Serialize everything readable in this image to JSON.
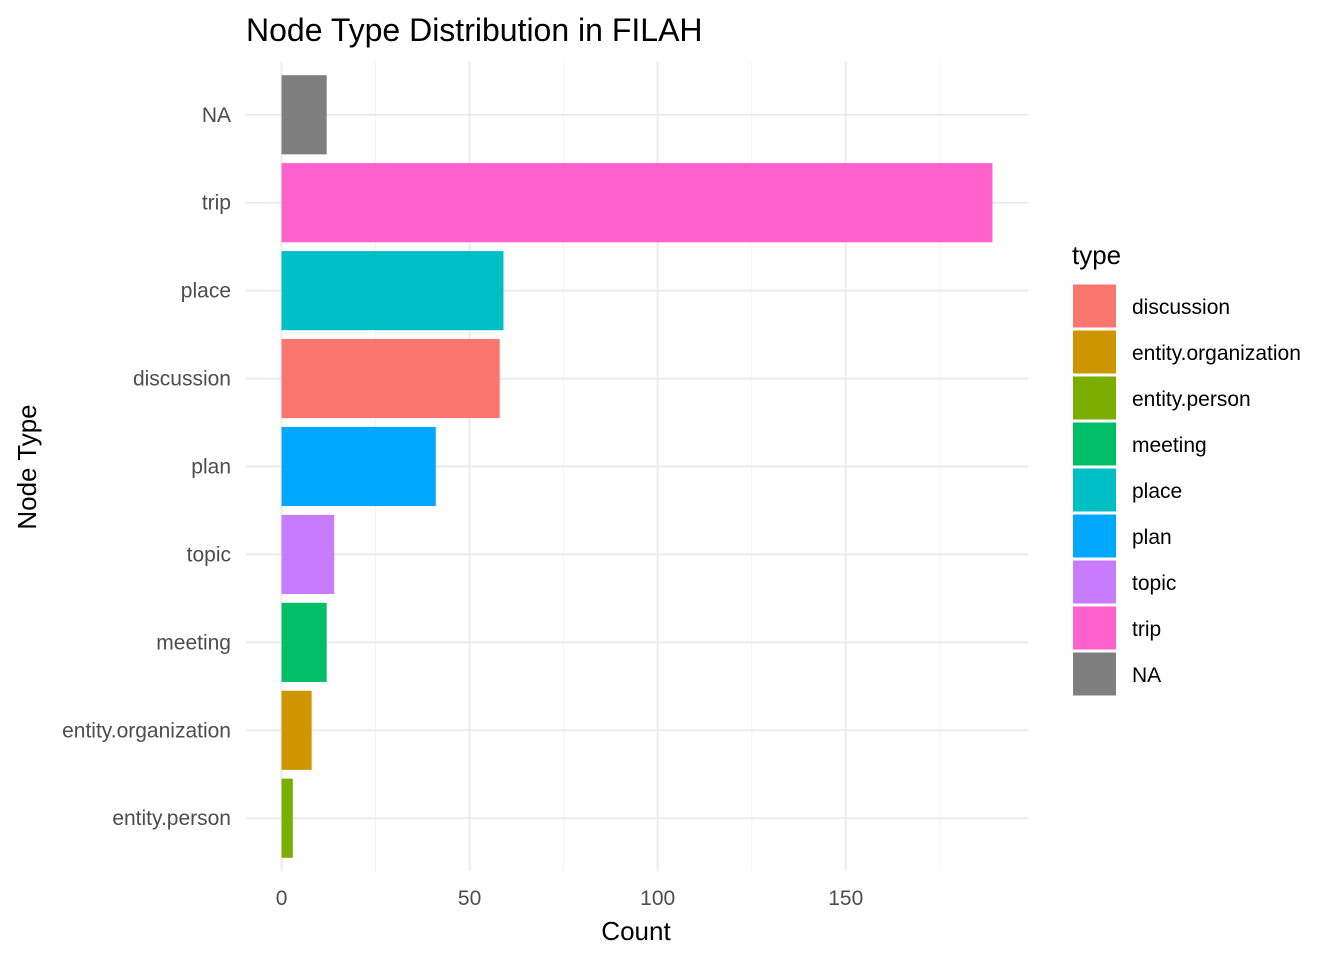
{
  "chart_data": {
    "type": "bar",
    "orientation": "horizontal",
    "title": "Node Type Distribution in FILAH",
    "xlabel": "Count",
    "ylabel": "Node Type",
    "categories": [
      "entity.person",
      "entity.organization",
      "meeting",
      "topic",
      "plan",
      "discussion",
      "place",
      "trip",
      "NA"
    ],
    "values": [
      3,
      8,
      12,
      14,
      41,
      58,
      59,
      189,
      12
    ],
    "colors": [
      "#7CAE00",
      "#CD9600",
      "#00BE67",
      "#C77CFF",
      "#00A9FF",
      "#F8766D",
      "#00BFC4",
      "#FF61CC",
      "#7F7F7F"
    ],
    "xlim": [
      -9.45,
      198.45
    ],
    "xticks": [
      0,
      50,
      100,
      150
    ],
    "xticklabels": [
      "0",
      "50",
      "100",
      "150"
    ],
    "grid": true,
    "legend": {
      "title": "type",
      "position": "right",
      "items": [
        {
          "label": "discussion",
          "color": "#F8766D"
        },
        {
          "label": "entity.organization",
          "color": "#CD9600"
        },
        {
          "label": "entity.person",
          "color": "#7CAE00"
        },
        {
          "label": "meeting",
          "color": "#00BE67"
        },
        {
          "label": "place",
          "color": "#00BFC4"
        },
        {
          "label": "plan",
          "color": "#00A9FF"
        },
        {
          "label": "topic",
          "color": "#C77CFF"
        },
        {
          "label": "trip",
          "color": "#FF61CC"
        },
        {
          "label": "NA",
          "color": "#7F7F7F"
        }
      ]
    }
  }
}
